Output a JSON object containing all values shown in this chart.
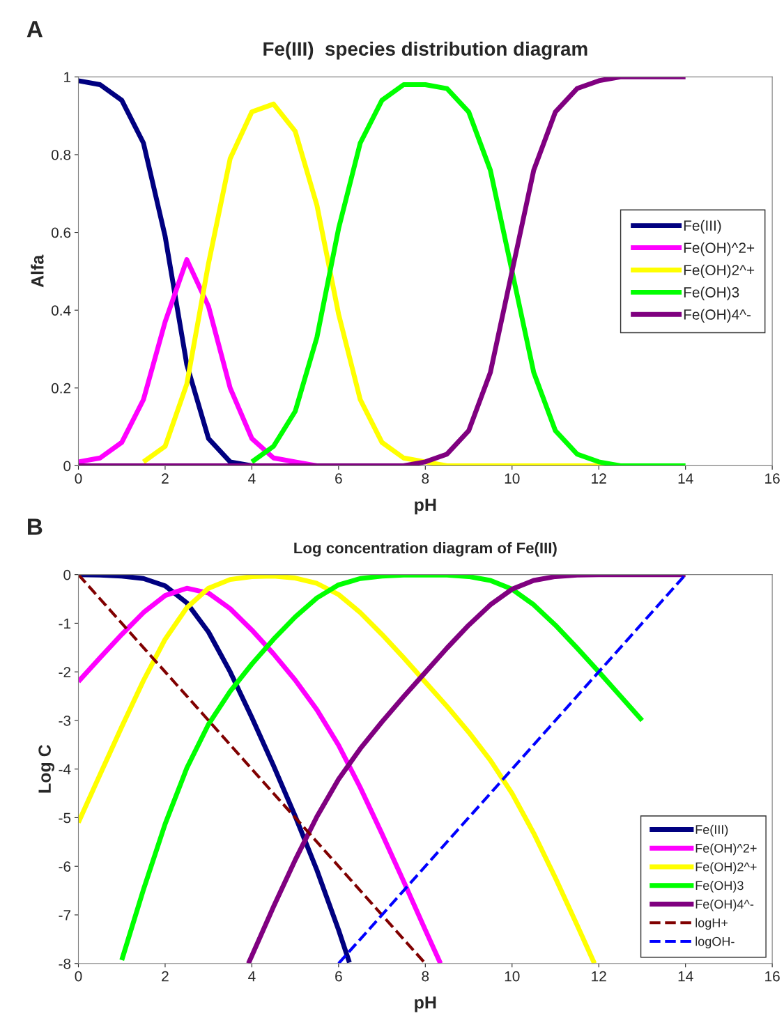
{
  "chart_data": [
    {
      "type": "line",
      "title": "Fe(III)  species distribution diagram",
      "xlabel": "pH",
      "ylabel": "Alfa",
      "annotations": [
        "A"
      ],
      "x": [
        0,
        0.5,
        1,
        1.5,
        2,
        2.5,
        3,
        3.5,
        4,
        4.5,
        5,
        5.5,
        6,
        6.5,
        7,
        7.5,
        8,
        8.5,
        9,
        9.5,
        10,
        10.5,
        11,
        11.5,
        12,
        12.5,
        13,
        13.5,
        14
      ],
      "xlim": [
        0,
        16
      ],
      "xticks": [
        0,
        2,
        4,
        6,
        8,
        10,
        12,
        14,
        16
      ],
      "ylim": [
        0,
        1
      ],
      "yticks": [
        0,
        0.2,
        0.4,
        0.6,
        0.8,
        1
      ],
      "legend": "right",
      "series": [
        {
          "name": "Fe(III)",
          "color": "#000080",
          "values": [
            0.99,
            0.98,
            0.94,
            0.83,
            0.59,
            0.26,
            0.07,
            0.01,
            0,
            null,
            null,
            null,
            null,
            null,
            null,
            null,
            null,
            null,
            null,
            null,
            null,
            null,
            null,
            null,
            null,
            null,
            null,
            null,
            null
          ]
        },
        {
          "name": "Fe(OH)^2+",
          "color": "#ff00ff",
          "values": [
            0.01,
            0.02,
            0.06,
            0.17,
            0.37,
            0.53,
            0.41,
            0.2,
            0.07,
            0.02,
            0.01,
            0,
            null,
            null,
            null,
            null,
            null,
            null,
            null,
            null,
            null,
            null,
            null,
            null,
            null,
            null,
            null,
            null,
            null
          ]
        },
        {
          "name": "Fe(OH)2^+",
          "color": "#ffff00",
          "values": [
            null,
            null,
            null,
            0.01,
            0.05,
            0.21,
            0.52,
            0.79,
            0.91,
            0.93,
            0.86,
            0.67,
            0.39,
            0.17,
            0.06,
            0.02,
            0.01,
            0,
            0,
            0,
            0,
            0,
            0,
            0,
            0,
            0,
            null,
            null,
            null
          ]
        },
        {
          "name": "Fe(OH)3",
          "color": "#00ff00",
          "values": [
            null,
            null,
            null,
            null,
            null,
            null,
            null,
            null,
            0.01,
            0.05,
            0.14,
            0.33,
            0.61,
            0.83,
            0.94,
            0.98,
            0.98,
            0.97,
            0.91,
            0.76,
            0.5,
            0.24,
            0.09,
            0.03,
            0.01,
            0,
            0,
            0,
            0
          ]
        },
        {
          "name": "Fe(OH)4^-",
          "color": "#800080",
          "values": [
            0,
            0,
            0,
            0,
            0,
            0,
            0,
            0,
            0,
            0,
            0,
            0,
            0,
            0,
            0,
            0,
            0.01,
            0.03,
            0.09,
            0.24,
            0.5,
            0.76,
            0.91,
            0.97,
            0.99,
            1,
            1,
            1,
            1
          ]
        }
      ]
    },
    {
      "type": "line",
      "title": "Log concentration diagram of Fe(III)",
      "xlabel": "pH",
      "ylabel": "Log C",
      "annotations": [
        "B"
      ],
      "xlim": [
        0,
        16
      ],
      "xticks": [
        0,
        2,
        4,
        6,
        8,
        10,
        12,
        14,
        16
      ],
      "ylim": [
        -8,
        0
      ],
      "yticks": [
        0,
        -1,
        -2,
        -3,
        -4,
        -5,
        -6,
        -7,
        -8
      ],
      "legend": "bottom right",
      "series": [
        {
          "name": "Fe(III)",
          "color": "#000080",
          "x": [
            0,
            0.5,
            1,
            1.5,
            2,
            2.5,
            3,
            3.5,
            4,
            4.5,
            5,
            5.5,
            6,
            6.25
          ],
          "values": [
            0,
            -0.01,
            -0.03,
            -0.08,
            -0.23,
            -0.58,
            -1.18,
            -2.0,
            -2.94,
            -3.93,
            -4.97,
            -6.08,
            -7.31,
            -7.98
          ]
        },
        {
          "name": "Fe(OH)^2+",
          "color": "#ff00ff",
          "x": [
            0,
            0.5,
            1,
            1.5,
            2,
            2.5,
            3,
            3.5,
            4,
            4.5,
            5,
            5.5,
            6,
            6.5,
            7,
            7.5,
            8,
            8.35
          ],
          "values": [
            -2.2,
            -1.71,
            -1.23,
            -0.78,
            -0.43,
            -0.28,
            -0.38,
            -0.7,
            -1.14,
            -1.63,
            -2.17,
            -2.78,
            -3.51,
            -4.38,
            -5.33,
            -6.31,
            -7.31,
            -8.0
          ]
        },
        {
          "name": "Fe(OH)2^+",
          "color": "#ffff00",
          "x": [
            0,
            0.5,
            1,
            1.5,
            2,
            2.5,
            3,
            3.5,
            4,
            4.5,
            5,
            5.5,
            6,
            6.5,
            7,
            7.5,
            8,
            8.5,
            9,
            9.5,
            10,
            10.5,
            11,
            11.5,
            11.9
          ],
          "values": [
            -5.1,
            -4.11,
            -3.13,
            -2.18,
            -1.33,
            -0.68,
            -0.28,
            -0.1,
            -0.04,
            -0.03,
            -0.07,
            -0.18,
            -0.41,
            -0.78,
            -1.23,
            -1.71,
            -2.21,
            -2.71,
            -3.24,
            -3.82,
            -4.5,
            -5.32,
            -6.24,
            -7.21,
            -8.0
          ]
        },
        {
          "name": "Fe(OH)3",
          "color": "#00ff00",
          "x": [
            1,
            1.5,
            2,
            2.5,
            3,
            3.5,
            4,
            4.5,
            5,
            5.5,
            6,
            6.5,
            7,
            7.5,
            8,
            8.5,
            9,
            9.5,
            10,
            10.5,
            11,
            11.5,
            12,
            12.5,
            13
          ],
          "values": [
            -7.93,
            -6.48,
            -5.13,
            -3.98,
            -3.08,
            -2.4,
            -1.84,
            -1.33,
            -0.87,
            -0.48,
            -0.21,
            -0.08,
            -0.03,
            -0.01,
            -0.01,
            -0.01,
            -0.04,
            -0.12,
            -0.3,
            -0.62,
            -1.04,
            -1.51,
            -2.0,
            -2.5,
            -3.0
          ]
        },
        {
          "name": "Fe(OH)4^-",
          "color": "#800080",
          "x": [
            3.92,
            4,
            4.5,
            5,
            5.5,
            6,
            6.5,
            7,
            7.5,
            8,
            8.5,
            9,
            9.5,
            10,
            10.5,
            11,
            11.5,
            12,
            13,
            14
          ],
          "values": [
            -8.0,
            -7.84,
            -6.83,
            -5.87,
            -4.98,
            -4.21,
            -3.58,
            -3.03,
            -2.51,
            -2.01,
            -1.51,
            -1.04,
            -0.62,
            -0.3,
            -0.12,
            -0.04,
            -0.01,
            0,
            0,
            0
          ]
        },
        {
          "name": "logH+",
          "color": "#800000",
          "line_style": "dashed",
          "x": [
            0,
            8
          ],
          "values": [
            0,
            -8
          ]
        },
        {
          "name": "logOH-",
          "color": "#0000ff",
          "line_style": "dashed",
          "x": [
            6,
            14
          ],
          "values": [
            -8,
            0
          ]
        }
      ]
    }
  ]
}
